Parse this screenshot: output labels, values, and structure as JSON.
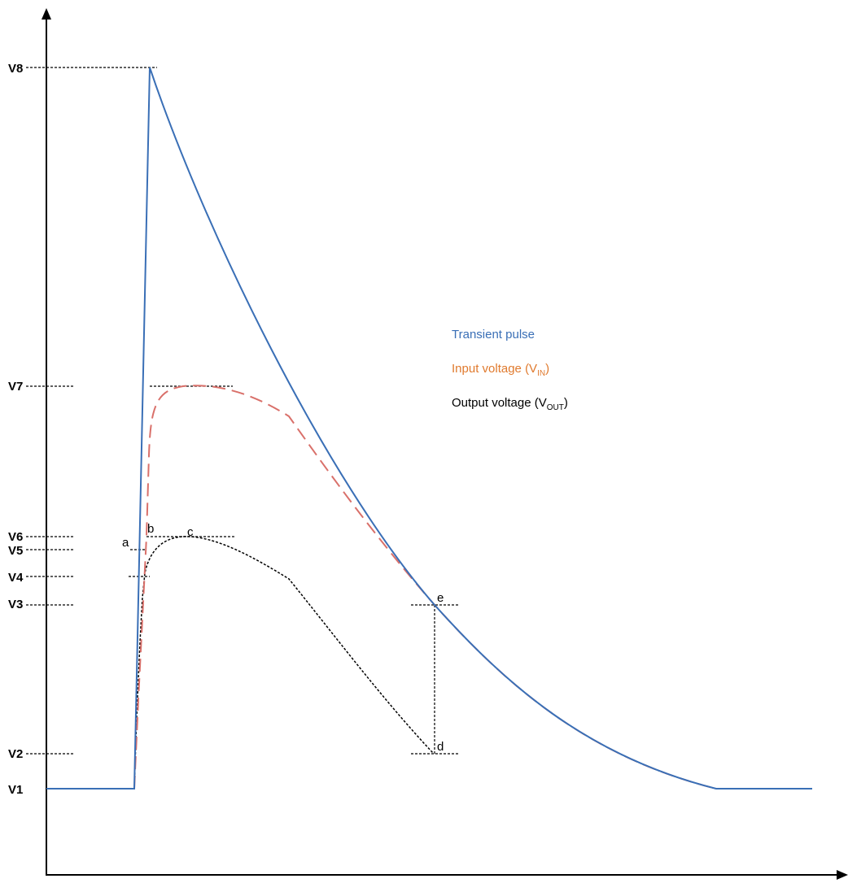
{
  "levels": [
    "V1",
    "V2",
    "V3",
    "V4",
    "V5",
    "V6",
    "V7",
    "V8"
  ],
  "points": [
    "a",
    "b",
    "c",
    "d",
    "e"
  ],
  "legend": [
    {
      "name": "transient",
      "text": "Transient pulse",
      "sub": "",
      "suffix": "",
      "color": "#3a6fb6"
    },
    {
      "name": "input",
      "text": "Input voltage (V",
      "sub": "IN",
      "suffix": ")",
      "color": "#e07a2e"
    },
    {
      "name": "output",
      "text": "Output voltage (V",
      "sub": "OUT",
      "suffix": ")",
      "color": "#000000"
    }
  ],
  "colors": {
    "transient": "#3a6fb6",
    "input_curve": "#d9706a",
    "output": "#000000",
    "axis": "#000000"
  }
}
